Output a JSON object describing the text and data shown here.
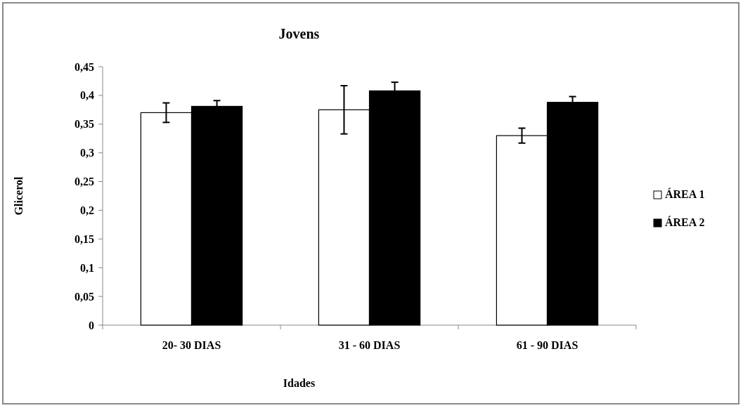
{
  "chart_data": {
    "type": "bar",
    "title": "Jovens",
    "xlabel": "Idades",
    "ylabel": "Glicerol",
    "categories": [
      "20- 30 DIAS",
      "31 - 60 DIAS",
      "61 - 90 DIAS"
    ],
    "series": [
      {
        "name": "ÁREA 1",
        "color": "#ffffff",
        "values": [
          0.37,
          0.375,
          0.33
        ],
        "errors": [
          0.017,
          0.042,
          0.013
        ]
      },
      {
        "name": "ÁREA 2",
        "color": "#000000",
        "values": [
          0.381,
          0.408,
          0.388
        ],
        "errors": [
          0.01,
          0.015,
          0.01
        ]
      }
    ],
    "ylim": [
      0,
      0.45
    ],
    "yticks": [
      {
        "value": 0,
        "label": "0"
      },
      {
        "value": 0.05,
        "label": "0,05"
      },
      {
        "value": 0.1,
        "label": "0,1"
      },
      {
        "value": 0.15,
        "label": "0,15"
      },
      {
        "value": 0.2,
        "label": "0,2"
      },
      {
        "value": 0.25,
        "label": "0,25"
      },
      {
        "value": 0.3,
        "label": "0,3"
      },
      {
        "value": 0.35,
        "label": "0,35"
      },
      {
        "value": 0.4,
        "label": "0,4"
      },
      {
        "value": 0.45,
        "label": "0,45"
      }
    ],
    "legend": "right",
    "grid": false
  }
}
